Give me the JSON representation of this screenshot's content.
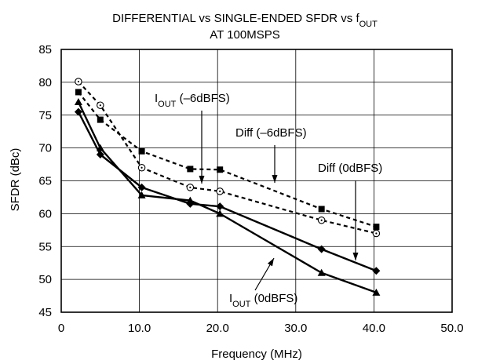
{
  "chart_data": {
    "type": "line",
    "title": {
      "line1_main": "DIFFERENTIAL vs SINGLE-ENDED SFDR vs f",
      "line1_sub": "OUT",
      "line2": "AT 100MSPS"
    },
    "xlabel": "Frequency (MHz)",
    "ylabel": "SFDR (dBc)",
    "xlim": [
      0,
      50
    ],
    "ylim": [
      45,
      85
    ],
    "x_ticks": [
      0,
      10,
      20,
      30,
      40,
      50
    ],
    "x_tick_labels": [
      "0",
      "10.0",
      "20.0",
      "30.0",
      "40.0",
      "50.0"
    ],
    "y_ticks": [
      45,
      50,
      55,
      60,
      65,
      70,
      75,
      80,
      85
    ],
    "y_tick_labels": [
      "45",
      "50",
      "55",
      "60",
      "65",
      "70",
      "75",
      "80",
      "85"
    ],
    "grid": true,
    "series": [
      {
        "label_id": "iout_6dbfs",
        "line_style": "dashed",
        "marker": "square",
        "points": [
          {
            "x": 2.2,
            "y": 78.5
          },
          {
            "x": 5.0,
            "y": 74.3
          },
          {
            "x": 10.3,
            "y": 69.5
          },
          {
            "x": 16.5,
            "y": 66.8
          },
          {
            "x": 20.3,
            "y": 66.7
          },
          {
            "x": 33.3,
            "y": 60.7
          },
          {
            "x": 40.3,
            "y": 58.0
          }
        ]
      },
      {
        "label_id": "diff_6dbfs",
        "line_style": "dashed",
        "marker": "circle-dot",
        "points": [
          {
            "x": 2.2,
            "y": 80.1
          },
          {
            "x": 5.0,
            "y": 76.5
          },
          {
            "x": 10.3,
            "y": 67.0
          },
          {
            "x": 16.5,
            "y": 64.0
          },
          {
            "x": 20.3,
            "y": 63.4
          },
          {
            "x": 33.3,
            "y": 59.0
          },
          {
            "x": 40.3,
            "y": 57.0
          }
        ]
      },
      {
        "label_id": "diff_0dbfs",
        "line_style": "solid",
        "marker": "diamond",
        "points": [
          {
            "x": 2.2,
            "y": 75.5
          },
          {
            "x": 5.0,
            "y": 69.0
          },
          {
            "x": 10.3,
            "y": 64.0
          },
          {
            "x": 16.5,
            "y": 61.5
          },
          {
            "x": 20.3,
            "y": 61.1
          },
          {
            "x": 33.3,
            "y": 54.6
          },
          {
            "x": 40.3,
            "y": 51.3
          }
        ]
      },
      {
        "label_id": "iout_0dbfs",
        "line_style": "solid",
        "marker": "triangle",
        "points": [
          {
            "x": 2.2,
            "y": 77.0
          },
          {
            "x": 5.0,
            "y": 70.0
          },
          {
            "x": 10.3,
            "y": 62.8
          },
          {
            "x": 16.5,
            "y": 62.0
          },
          {
            "x": 20.3,
            "y": 60.0
          },
          {
            "x": 33.3,
            "y": 51.0
          },
          {
            "x": 40.3,
            "y": 48.0
          }
        ]
      }
    ],
    "annotations": [
      {
        "id": "iout_6dbfs",
        "main": "I",
        "sub": "OUT",
        "rest": " (–6dBFS)",
        "target": {
          "x": 17.8,
          "y": 64.0
        }
      },
      {
        "id": "diff_6dbfs",
        "main": "Diff (–6dBFS)",
        "sub": "",
        "rest": "",
        "target": {
          "x": 27.8,
          "y": 63.5
        }
      },
      {
        "id": "diff_0dbfs",
        "main": "Diff (0dBFS)",
        "sub": "",
        "rest": "",
        "target": {
          "x": 37.6,
          "y": 52.3
        }
      },
      {
        "id": "iout_0dbfs",
        "main": "I",
        "sub": "OUT",
        "rest": " (0dBFS)",
        "target": {
          "x": 27.5,
          "y": 53.5
        }
      }
    ]
  }
}
